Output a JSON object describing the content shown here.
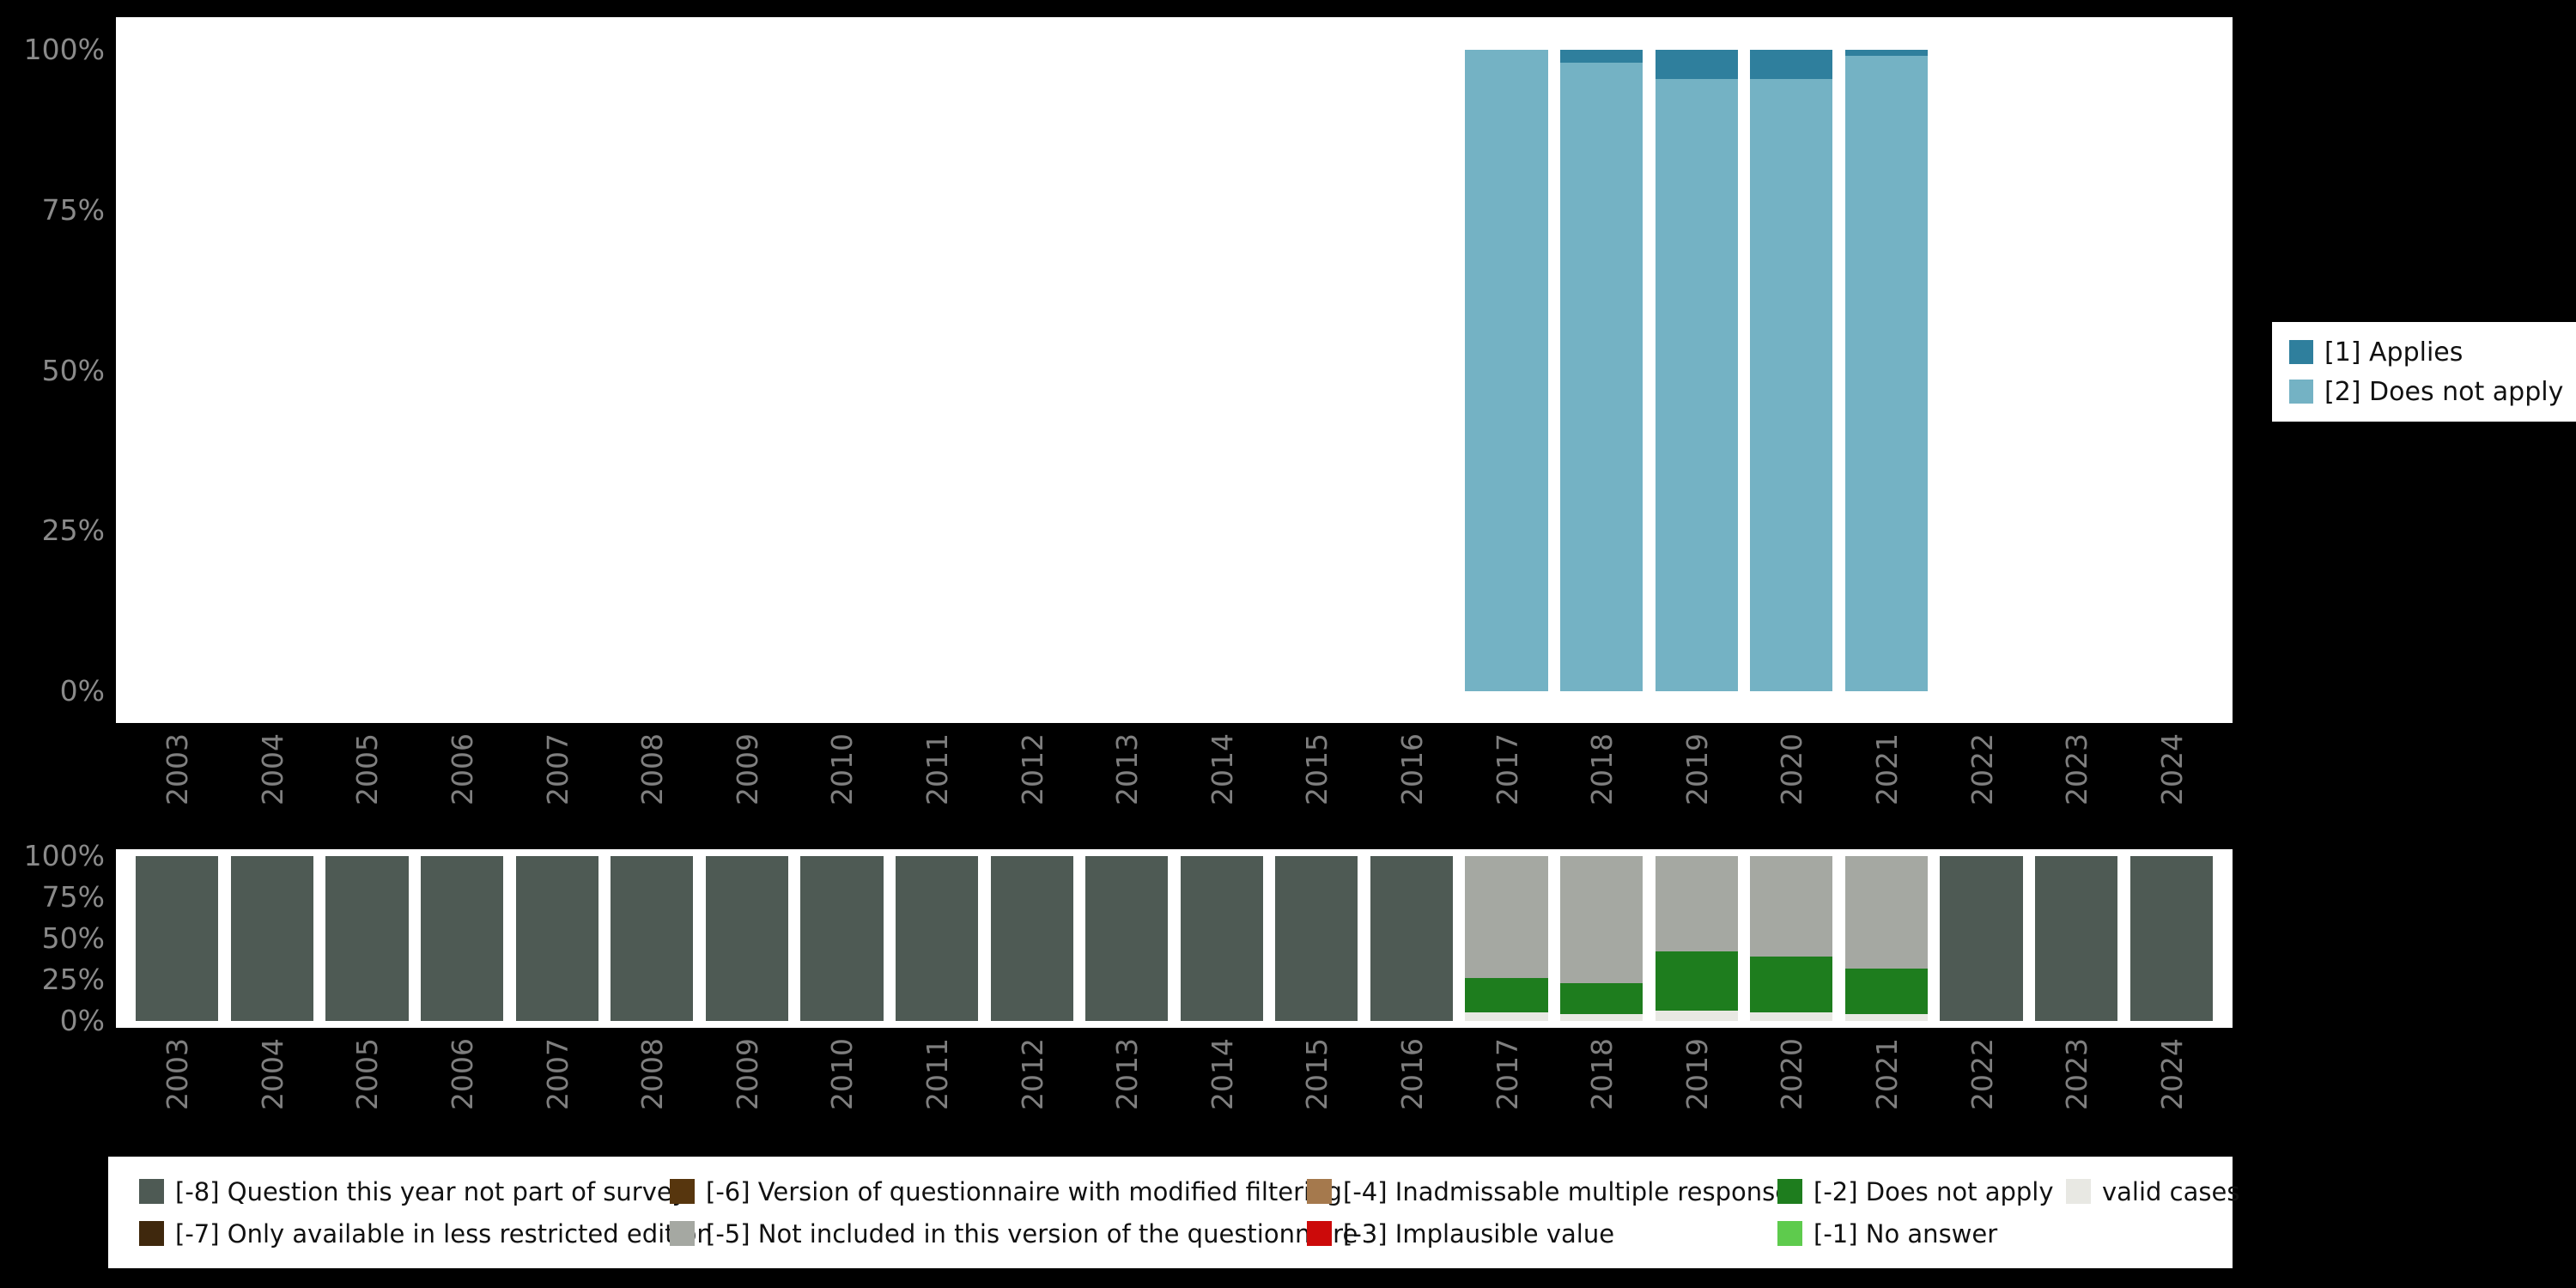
{
  "background_color": "#000000",
  "plot_background_color": "#ffffff",
  "axis_text_color": "#7f7f7f",
  "chart_data": [
    {
      "id": "substantive-values",
      "type": "bar",
      "stacked": true,
      "orientation": "vertical",
      "title": "",
      "xlabel": "",
      "ylabel": "",
      "ylim": [
        0,
        100
      ],
      "y_ticks": [
        "0%",
        "25%",
        "50%",
        "75%",
        "100%"
      ],
      "grid": false,
      "legend_position": "right",
      "categories": [
        "2003",
        "2004",
        "2005",
        "2006",
        "2007",
        "2008",
        "2009",
        "2010",
        "2011",
        "2012",
        "2013",
        "2014",
        "2015",
        "2016",
        "2017",
        "2018",
        "2019",
        "2020",
        "2021",
        "2022",
        "2023",
        "2024"
      ],
      "series": [
        {
          "name": "[1] Applies",
          "color": "#2f7f9d",
          "values": [
            0,
            0,
            0,
            0,
            0,
            0,
            0,
            0,
            0,
            0,
            0,
            0,
            0,
            0,
            0,
            2,
            4.5,
            4.5,
            1,
            0,
            0,
            0
          ]
        },
        {
          "name": "[2] Does not apply",
          "color": "#74b2c4",
          "values": [
            0,
            0,
            0,
            0,
            0,
            0,
            0,
            0,
            0,
            0,
            0,
            0,
            0,
            0,
            100,
            98,
            95.5,
            95.5,
            99,
            0,
            0,
            0
          ]
        }
      ],
      "stack_bottom_to_top": [
        1,
        0
      ]
    },
    {
      "id": "missing-values",
      "type": "bar",
      "stacked": true,
      "orientation": "vertical",
      "title": "",
      "xlabel": "",
      "ylabel": "",
      "ylim": [
        0,
        100
      ],
      "y_ticks": [
        "0%",
        "25%",
        "50%",
        "75%",
        "100%"
      ],
      "grid": false,
      "legend_position": "bottom",
      "categories": [
        "2003",
        "2004",
        "2005",
        "2006",
        "2007",
        "2008",
        "2009",
        "2010",
        "2011",
        "2012",
        "2013",
        "2014",
        "2015",
        "2016",
        "2017",
        "2018",
        "2019",
        "2020",
        "2021",
        "2022",
        "2023",
        "2024"
      ],
      "series": [
        {
          "name": "valid cases",
          "color": "#e8e8e3",
          "values": [
            0,
            0,
            0,
            0,
            0,
            0,
            0,
            0,
            0,
            0,
            0,
            0,
            0,
            0,
            5,
            4,
            6,
            5,
            4,
            0,
            0,
            0
          ]
        },
        {
          "name": "[-2] Does not apply",
          "color": "#1e7d1e",
          "values": [
            0,
            0,
            0,
            0,
            0,
            0,
            0,
            0,
            0,
            0,
            0,
            0,
            0,
            0,
            21,
            19,
            36,
            34,
            28,
            0,
            0,
            0
          ]
        },
        {
          "name": "[-5] Not included in this version of the questionnaire",
          "color": "#a5a8a2",
          "values": [
            0,
            0,
            0,
            0,
            0,
            0,
            0,
            0,
            0,
            0,
            0,
            0,
            0,
            0,
            74,
            77,
            58,
            61,
            68,
            0,
            0,
            0
          ]
        },
        {
          "name": "[-8] Question this year not part of survey",
          "color": "#4e5a54",
          "values": [
            100,
            100,
            100,
            100,
            100,
            100,
            100,
            100,
            100,
            100,
            100,
            100,
            100,
            100,
            0,
            0,
            0,
            0,
            0,
            100,
            100,
            100
          ]
        }
      ],
      "stack_bottom_to_top": [
        0,
        1,
        2,
        3
      ]
    }
  ],
  "right_legend": {
    "entries": [
      {
        "label": "[1] Applies",
        "color": "#2f7f9d"
      },
      {
        "label": "[2] Does not apply",
        "color": "#74b2c4"
      }
    ]
  },
  "bottom_legend": {
    "items": [
      {
        "label": "[-8] Question this year not part of survey",
        "color": "#4e5a54"
      },
      {
        "label": "[-6] Version of questionnaire with modified filtering",
        "color": "#57360e"
      },
      {
        "label": "[-4] Inadmissable multiple response",
        "color": "#a5794d"
      },
      {
        "label": "[-2] Does not apply",
        "color": "#1e7d1e"
      },
      {
        "label": "valid cases",
        "color": "#e8e8e3"
      },
      {
        "label": "[-7] Only available in less restricted edition",
        "color": "#3f280d"
      },
      {
        "label": "[-5] Not included in this version of the questionnaire",
        "color": "#a5a8a2"
      },
      {
        "label": "[-3] Implausible value",
        "color": "#cc0a0a"
      },
      {
        "label": "[-1] No answer",
        "color": "#5ecb4d"
      }
    ]
  }
}
